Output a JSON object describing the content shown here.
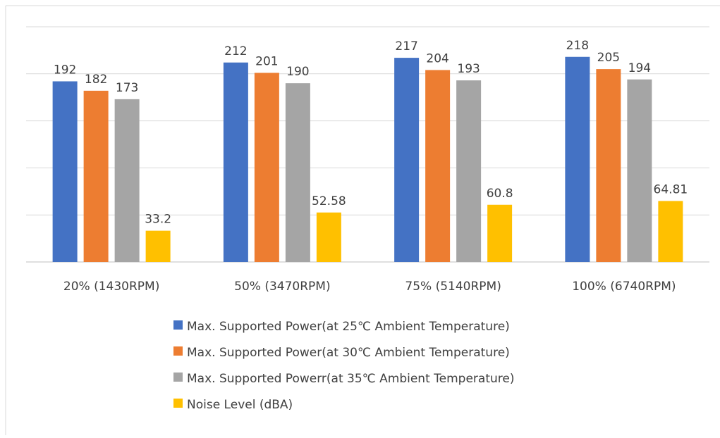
{
  "chart_data": {
    "type": "bar",
    "title": "",
    "xlabel": "",
    "ylabel": "",
    "ylim": [
      0,
      250
    ],
    "grid": true,
    "legend_position": "bottom",
    "categories": [
      "20% (1430RPM)",
      "50% (3470RPM)",
      "75% (5140RPM)",
      "100% (6740RPM)"
    ],
    "series": [
      {
        "name": "Max. Supported Power(at 25℃ Ambient Temperature)",
        "color": "#4472C4",
        "values": [
          192,
          212,
          217,
          218
        ],
        "labels": [
          "192",
          "212",
          "217",
          "218"
        ]
      },
      {
        "name": "Max. Supported Power(at 30℃ Ambient Temperature)",
        "color": "#ED7D31",
        "values": [
          182,
          201,
          204,
          205
        ],
        "labels": [
          "182",
          "201",
          "204",
          "205"
        ]
      },
      {
        "name": "Max. Supported Powerr(at 35℃ Ambient Temperature)",
        "color": "#A5A5A5",
        "values": [
          173,
          190,
          193,
          194
        ],
        "labels": [
          "173",
          "190",
          "193",
          "194"
        ]
      },
      {
        "name": "Noise Level (dBA)",
        "color": "#FFC000",
        "values": [
          33.2,
          52.58,
          60.8,
          64.81
        ],
        "labels": [
          "33.2",
          "52.58",
          "60.8",
          "64.81"
        ]
      }
    ]
  }
}
